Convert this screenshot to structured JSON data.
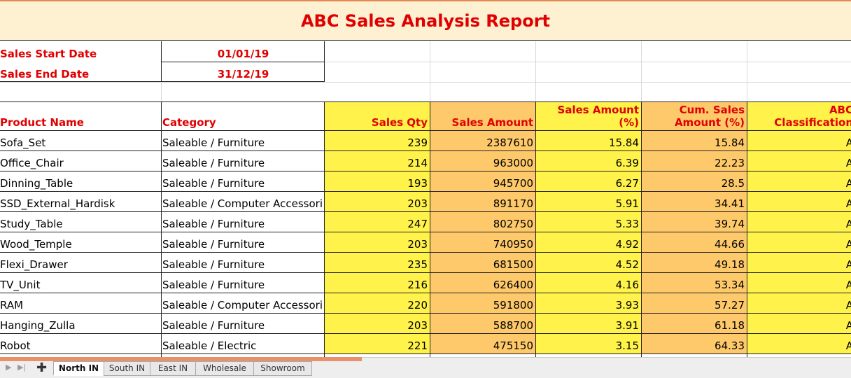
{
  "report": {
    "title": "ABC Sales Analysis Report",
    "start_label": "Sales Start Date",
    "start_value": "01/01/19",
    "end_label": "Sales End Date",
    "end_value": "31/12/19"
  },
  "headers": {
    "product": "Product Name",
    "category": "Category",
    "qty": "Sales Qty",
    "amount": "Sales Amount",
    "pct_line1": "Sales Amount",
    "pct_line2": "(%)",
    "cum_line1": "Cum. Sales",
    "cum_line2": "Amount (%)",
    "abc_line1": "ABC",
    "abc_line2": "Classification"
  },
  "rows": [
    {
      "product": "Sofa_Set",
      "category": "Saleable / Furniture",
      "qty": "239",
      "amount": "2387610",
      "pct": "15.84",
      "cum": "15.84",
      "abc": "A"
    },
    {
      "product": "Office_Chair",
      "category": "Saleable / Furniture",
      "qty": "214",
      "amount": "963000",
      "pct": "6.39",
      "cum": "22.23",
      "abc": "A"
    },
    {
      "product": "Dinning_Table",
      "category": "Saleable / Furniture",
      "qty": "193",
      "amount": "945700",
      "pct": "6.27",
      "cum": "28.5",
      "abc": "A"
    },
    {
      "product": "SSD_External_Hardisk",
      "category": "Saleable / Computer Accessori",
      "qty": "203",
      "amount": "891170",
      "pct": "5.91",
      "cum": "34.41",
      "abc": "A"
    },
    {
      "product": "Study_Table",
      "category": "Saleable / Furniture",
      "qty": "247",
      "amount": "802750",
      "pct": "5.33",
      "cum": "39.74",
      "abc": "A"
    },
    {
      "product": "Wood_Temple",
      "category": "Saleable / Furniture",
      "qty": "203",
      "amount": "740950",
      "pct": "4.92",
      "cum": "44.66",
      "abc": "A"
    },
    {
      "product": "Flexi_Drawer",
      "category": "Saleable / Furniture",
      "qty": "235",
      "amount": "681500",
      "pct": "4.52",
      "cum": "49.18",
      "abc": "A"
    },
    {
      "product": "TV_Unit",
      "category": "Saleable / Furniture",
      "qty": "216",
      "amount": "626400",
      "pct": "4.16",
      "cum": "53.34",
      "abc": "A"
    },
    {
      "product": "RAM",
      "category": "Saleable / Computer Accessori",
      "qty": "220",
      "amount": "591800",
      "pct": "3.93",
      "cum": "57.27",
      "abc": "A"
    },
    {
      "product": "Hanging_Zulla",
      "category": "Saleable / Furniture",
      "qty": "203",
      "amount": "588700",
      "pct": "3.91",
      "cum": "61.18",
      "abc": "A"
    },
    {
      "product": "Robot",
      "category": "Saleable / Electric",
      "qty": "221",
      "amount": "475150",
      "pct": "3.15",
      "cum": "64.33",
      "abc": "A"
    }
  ],
  "tabs": [
    {
      "label": "North IN",
      "active": true
    },
    {
      "label": "South IN",
      "active": false
    },
    {
      "label": "East IN",
      "active": false
    },
    {
      "label": "Wholesale",
      "active": false
    },
    {
      "label": "Showroom",
      "active": false
    }
  ],
  "tabbar": {
    "add_symbol": "✚",
    "first_symbol": "▶",
    "last_symbol": "▶|"
  },
  "colors": {
    "accent_red": "#e00000",
    "header_fill": "#fdf1d2",
    "yellow": "#fff24a",
    "orange": "#fec96a"
  }
}
